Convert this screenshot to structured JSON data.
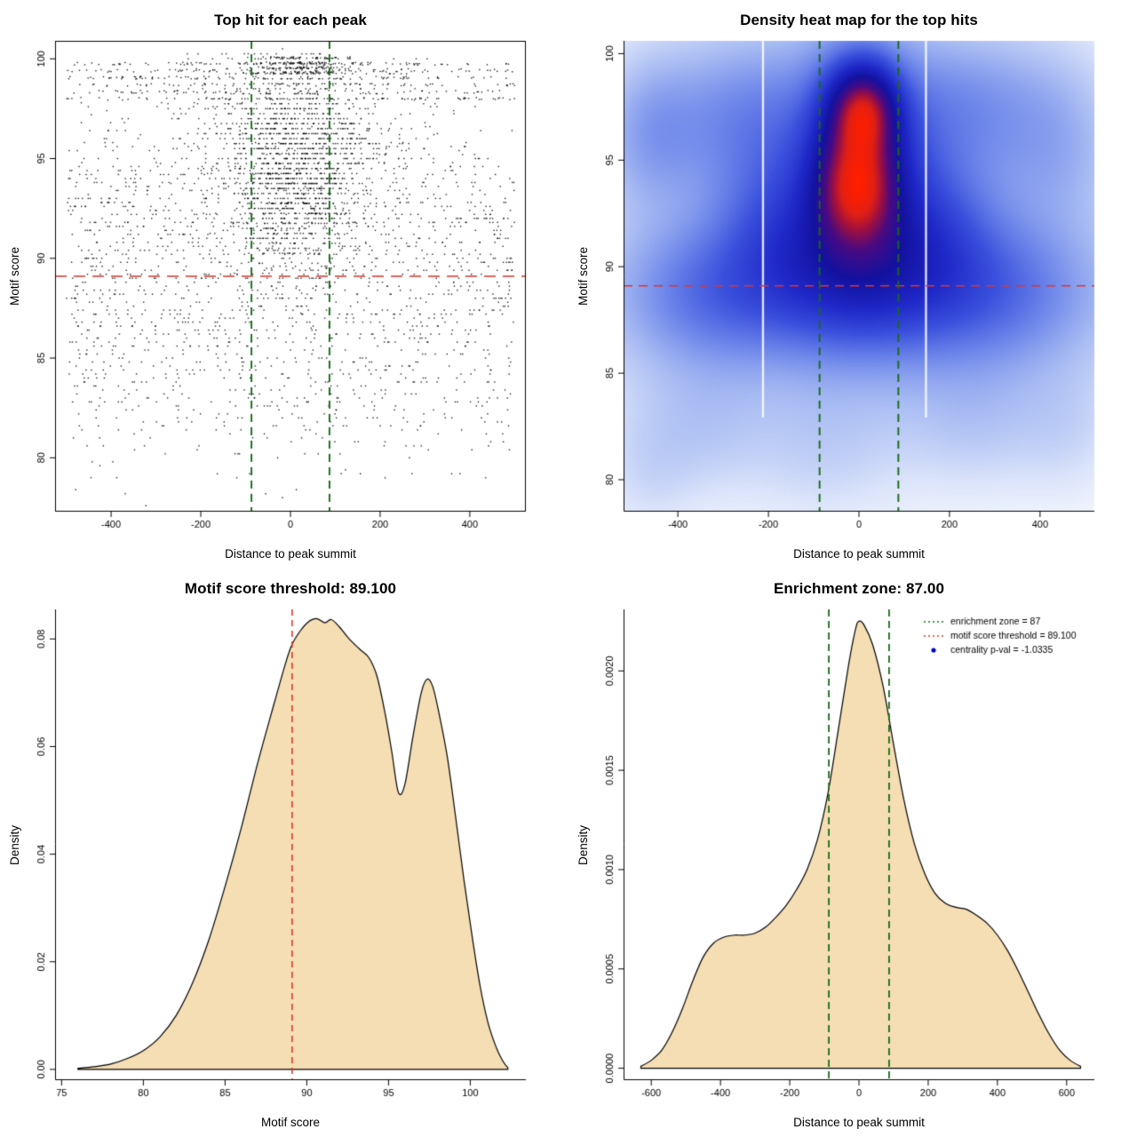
{
  "figure": {
    "background": "#ffffff",
    "n_panels": 4
  },
  "chart_data": [
    {
      "id": "top-hits-scatter",
      "type": "scatter",
      "title": "Top hit for each peak",
      "xlabel": "Distance to peak summit",
      "ylabel": "Motif score",
      "xlim": [
        -525,
        525
      ],
      "ylim": [
        77.3,
        100.9
      ],
      "xticks": {
        "values": [
          -400,
          -200,
          0,
          200,
          400
        ],
        "labels": [
          "-400",
          "-200",
          "0",
          "200",
          "400"
        ]
      },
      "yticks": {
        "values": [
          80,
          85,
          90,
          95,
          100
        ],
        "labels": [
          "80",
          "85",
          "90",
          "95",
          "100"
        ]
      },
      "box": "full",
      "ref_lines": [
        {
          "axis": "y",
          "value": 89.1,
          "color": "#d6352b",
          "dash": [
            13,
            8
          ],
          "width": 1.6
        },
        {
          "axis": "x",
          "value": -87,
          "color": "#166b16",
          "dash": [
            9,
            6
          ],
          "width": 1.9
        },
        {
          "axis": "x",
          "value": 87,
          "color": "#166b16",
          "dash": [
            9,
            6
          ],
          "width": 1.9
        }
      ],
      "points_spec": {
        "seed": 20240521,
        "n": 4300,
        "color": "#000000",
        "alpha": 0.88,
        "size": 1.4,
        "clusters": [
          {
            "weight": 0.26,
            "x": {
              "dist": "norm",
              "mean": 10,
              "sd": 115,
              "clip": [
                -505,
                505
              ]
            },
            "y": {
              "dist": "norm",
              "mean": 96.2,
              "sd": 2.3,
              "clip": [
                90,
                100.4
              ],
              "quant": 0.25
            }
          },
          {
            "weight": 0.28,
            "x": {
              "dist": "unif",
              "min": -500,
              "max": 500
            },
            "y": {
              "dist": "norm",
              "mean": 91.4,
              "sd": 3.0,
              "clip": [
                80.5,
                100.2
              ],
              "quant": 0.2
            }
          },
          {
            "weight": 0.1,
            "x": {
              "dist": "unif",
              "min": -500,
              "max": 500
            },
            "y": {
              "dist": "rows",
              "values": [
                99.75,
                99.4,
                99.05,
                98.7,
                98.35,
                98.0
              ],
              "jitter": 0.07
            }
          },
          {
            "weight": 0.14,
            "x": {
              "dist": "norm",
              "mean": 5,
              "sd": 65,
              "clip": [
                -300,
                300
              ]
            },
            "y": {
              "dist": "norm",
              "mean": 93.2,
              "sd": 2.2,
              "clip": [
                86,
                100.2
              ],
              "quant": 0.25
            }
          },
          {
            "weight": 0.16,
            "x": {
              "dist": "unif",
              "min": -495,
              "max": 495
            },
            "y": {
              "dist": "norm",
              "mean": 84.8,
              "sd": 2.8,
              "clip": [
                77.5,
                89.5
              ],
              "quant": 0.2
            }
          },
          {
            "weight": 0.06,
            "x": {
              "dist": "norm",
              "mean": 15,
              "sd": 55,
              "clip": [
                -200,
                230
              ]
            },
            "y": {
              "dist": "rows",
              "values": [
                100.05,
                99.8,
                99.55,
                99.3
              ],
              "jitter": 0.05
            }
          }
        ]
      }
    },
    {
      "id": "top-hits-heatmap",
      "type": "heatmap",
      "title": "Density heat map for the top hits",
      "xlabel": "Distance to peak summit",
      "ylabel": "Motif score",
      "xlim": [
        -520,
        520
      ],
      "ylim": [
        78.5,
        100.6
      ],
      "xticks": {
        "values": [
          -400,
          -200,
          0,
          200,
          400
        ],
        "labels": [
          "-400",
          "-200",
          "0",
          "200",
          "400"
        ]
      },
      "yticks": {
        "values": [
          80,
          85,
          90,
          95,
          100
        ],
        "labels": [
          "80",
          "85",
          "90",
          "95",
          "100"
        ]
      },
      "box": "lb",
      "gamma": 0.5,
      "density_kernels": [
        [
          10,
          97.4,
          48,
          1.35,
          1.0
        ],
        [
          -5,
          93.6,
          58,
          1.7,
          0.82
        ],
        [
          0,
          95.5,
          62,
          2.3,
          0.55
        ],
        [
          0,
          94.3,
          100,
          3.6,
          0.45
        ],
        [
          0,
          90.5,
          135,
          2.3,
          0.4
        ],
        [
          0,
          89.0,
          260,
          2.1,
          0.22
        ],
        [
          -330,
          88.7,
          115,
          2.1,
          0.15
        ],
        [
          300,
          88.8,
          135,
          2.2,
          0.15
        ],
        [
          -250,
          97.0,
          120,
          2.3,
          0.17
        ],
        [
          -455,
          96.3,
          70,
          2.2,
          0.12
        ],
        [
          230,
          97.5,
          120,
          2.1,
          0.15
        ],
        [
          430,
          95.8,
          85,
          2.6,
          0.09
        ],
        [
          -180,
          92.0,
          95,
          2.6,
          0.2
        ],
        [
          165,
          91.8,
          95,
          2.6,
          0.2
        ],
        [
          0,
          93.0,
          380,
          5.5,
          0.1
        ],
        [
          0,
          87.0,
          400,
          3.5,
          0.06
        ],
        [
          -350,
          82.6,
          95,
          2.1,
          0.05
        ],
        [
          -80,
          81.6,
          120,
          2.2,
          0.04
        ],
        [
          260,
          83.0,
          105,
          2.1,
          0.05
        ],
        [
          -465,
          80.5,
          70,
          1.9,
          0.035
        ],
        [
          455,
          82.5,
          75,
          2.0,
          0.035
        ]
      ],
      "colormap": [
        [
          0.0,
          "#ffffff"
        ],
        [
          0.05,
          "#f3f6fd"
        ],
        [
          0.12,
          "#dbe4fa"
        ],
        [
          0.22,
          "#aabdf3"
        ],
        [
          0.34,
          "#6e87ea"
        ],
        [
          0.46,
          "#3a50dd"
        ],
        [
          0.58,
          "#1f28c8"
        ],
        [
          0.7,
          "#1312a0"
        ],
        [
          0.8,
          "#4a0a82"
        ],
        [
          0.88,
          "#a01040"
        ],
        [
          0.94,
          "#e02015"
        ],
        [
          1.0,
          "#ff1e00"
        ]
      ],
      "artifacts": {
        "white_vlines": [
          -212,
          148
        ]
      },
      "ref_lines": [
        {
          "axis": "y",
          "value": 89.1,
          "color": "#e0352b",
          "dash": [
            10,
            7
          ],
          "width": 1.4
        },
        {
          "axis": "x",
          "value": -87,
          "color": "#166b16",
          "dash": [
            9,
            6
          ],
          "width": 1.9
        },
        {
          "axis": "x",
          "value": 87,
          "color": "#166b16",
          "dash": [
            9,
            6
          ],
          "width": 1.9
        }
      ]
    },
    {
      "id": "motif-score-density",
      "type": "density",
      "title": "Motif score threshold: 89.100",
      "xlabel": "Motif score",
      "ylabel": "Density",
      "xlim": [
        74.6,
        103.4
      ],
      "ylim": [
        -0.002,
        0.0855
      ],
      "xticks": {
        "values": [
          75,
          80,
          85,
          90,
          95,
          100
        ],
        "labels": [
          "75",
          "80",
          "85",
          "90",
          "95",
          "100"
        ]
      },
      "yticks": {
        "values": [
          0.0,
          0.02,
          0.04,
          0.06,
          0.08
        ],
        "labels": [
          "0.00",
          "0.02",
          "0.04",
          "0.06",
          "0.08"
        ]
      },
      "box": "lb",
      "fill": "#f5deb3",
      "stroke": "#000000",
      "baseline": 0,
      "curve": [
        [
          76,
          0.0002
        ],
        [
          77,
          0.0005
        ],
        [
          78,
          0.001
        ],
        [
          79,
          0.002
        ],
        [
          80,
          0.0035
        ],
        [
          81,
          0.006
        ],
        [
          82,
          0.01
        ],
        [
          83,
          0.016
        ],
        [
          84,
          0.024
        ],
        [
          85,
          0.034
        ],
        [
          86,
          0.045
        ],
        [
          87,
          0.057
        ],
        [
          88,
          0.068
        ],
        [
          88.7,
          0.0755
        ],
        [
          89.1,
          0.079
        ],
        [
          89.6,
          0.0815
        ],
        [
          90.1,
          0.0832
        ],
        [
          90.6,
          0.0838
        ],
        [
          91.1,
          0.083
        ],
        [
          91.5,
          0.0836
        ],
        [
          92,
          0.0822
        ],
        [
          92.6,
          0.08
        ],
        [
          93.2,
          0.0782
        ],
        [
          93.8,
          0.0765
        ],
        [
          94.3,
          0.073
        ],
        [
          94.8,
          0.066
        ],
        [
          95.2,
          0.059
        ],
        [
          95.6,
          0.0515
        ],
        [
          96.0,
          0.053
        ],
        [
          96.5,
          0.062
        ],
        [
          97.0,
          0.07
        ],
        [
          97.35,
          0.0725
        ],
        [
          97.7,
          0.0712
        ],
        [
          98.1,
          0.066
        ],
        [
          98.6,
          0.058
        ],
        [
          99.1,
          0.047
        ],
        [
          99.6,
          0.0355
        ],
        [
          100.1,
          0.025
        ],
        [
          100.6,
          0.0155
        ],
        [
          101.1,
          0.0085
        ],
        [
          101.6,
          0.004
        ],
        [
          102.0,
          0.0015
        ],
        [
          102.3,
          0.0003
        ]
      ],
      "ref_lines": [
        {
          "axis": "x",
          "value": 89.1,
          "color": "#e0352b",
          "dash": [
            7,
            5
          ],
          "width": 1.6
        }
      ]
    },
    {
      "id": "distance-density",
      "type": "density",
      "title": "Enrichment zone: 87.00",
      "xlabel": "Distance to peak summit",
      "ylabel": "Density",
      "xlim": [
        -680,
        680
      ],
      "ylim": [
        -6e-05,
        0.00231
      ],
      "xticks": {
        "values": [
          -600,
          -400,
          -200,
          0,
          200,
          400,
          600
        ],
        "labels": [
          "-600",
          "-400",
          "-200",
          "0",
          "200",
          "400",
          "600"
        ]
      },
      "yticks": {
        "values": [
          0.0,
          0.0005,
          0.001,
          0.0015,
          0.002
        ],
        "labels": [
          "0.0000",
          "0.0005",
          "0.0010",
          "0.0015",
          "0.0020"
        ]
      },
      "box": "lb",
      "fill": "#f5deb3",
      "stroke": "#000000",
      "baseline": 0,
      "curve": [
        [
          -630,
          1e-05
        ],
        [
          -600,
          4e-05
        ],
        [
          -570,
          9e-05
        ],
        [
          -540,
          0.00018
        ],
        [
          -510,
          0.0003
        ],
        [
          -480,
          0.00044
        ],
        [
          -450,
          0.00056
        ],
        [
          -420,
          0.00063
        ],
        [
          -390,
          0.00066
        ],
        [
          -360,
          0.00067
        ],
        [
          -330,
          0.00067
        ],
        [
          -300,
          0.00068
        ],
        [
          -270,
          0.00071
        ],
        [
          -240,
          0.00076
        ],
        [
          -210,
          0.00082
        ],
        [
          -180,
          0.0009
        ],
        [
          -150,
          0.001
        ],
        [
          -120,
          0.00115
        ],
        [
          -90,
          0.00138
        ],
        [
          -60,
          0.0017
        ],
        [
          -30,
          0.00203
        ],
        [
          -10,
          0.00221
        ],
        [
          0,
          0.00225
        ],
        [
          15,
          0.00223
        ],
        [
          40,
          0.00213
        ],
        [
          70,
          0.00192
        ],
        [
          100,
          0.00163
        ],
        [
          130,
          0.00135
        ],
        [
          160,
          0.00113
        ],
        [
          190,
          0.00098
        ],
        [
          220,
          0.00088
        ],
        [
          250,
          0.00083
        ],
        [
          280,
          0.00081
        ],
        [
          310,
          0.0008
        ],
        [
          340,
          0.00077
        ],
        [
          370,
          0.00073
        ],
        [
          400,
          0.00067
        ],
        [
          430,
          0.00059
        ],
        [
          460,
          0.00049
        ],
        [
          490,
          0.00038
        ],
        [
          520,
          0.00027
        ],
        [
          550,
          0.00017
        ],
        [
          580,
          9e-05
        ],
        [
          610,
          4e-05
        ],
        [
          640,
          1e-05
        ]
      ],
      "ref_lines": [
        {
          "axis": "x",
          "value": -87,
          "color": "#166b16",
          "dash": [
            8,
            5
          ],
          "width": 1.8
        },
        {
          "axis": "x",
          "value": 87,
          "color": "#166b16",
          "dash": [
            8,
            5
          ],
          "width": 1.8
        }
      ],
      "legend": {
        "position": "top-right",
        "items": [
          {
            "marker": "dotted-line",
            "color": "#166b16",
            "label": "enrichment zone = 87"
          },
          {
            "marker": "dotted-line",
            "color": "#e0352b",
            "label": "motif score threshold = 89.100"
          },
          {
            "marker": "point",
            "color": "#0000cd",
            "label": "centrality p-val = -1.0335"
          }
        ]
      }
    }
  ]
}
